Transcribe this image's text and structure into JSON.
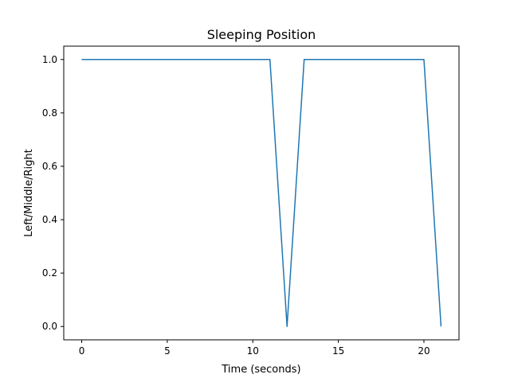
{
  "chart_data": {
    "type": "line",
    "title": "Sleeping Position",
    "xlabel": "Time (seconds)",
    "ylabel": "Left/Middle/Right",
    "xlim": [
      -1.05,
      22.05
    ],
    "ylim": [
      -0.05,
      1.05
    ],
    "x_ticks": [
      0,
      5,
      10,
      15,
      20
    ],
    "x_tick_labels": [
      "0",
      "5",
      "10",
      "15",
      "20"
    ],
    "y_ticks": [
      0.0,
      0.2,
      0.4,
      0.6,
      0.8,
      1.0
    ],
    "y_tick_labels": [
      "0.0",
      "0.2",
      "0.4",
      "0.6",
      "0.8",
      "1.0"
    ],
    "grid": false,
    "series": [
      {
        "color": "#1f77b4",
        "x": [
          0,
          1,
          2,
          3,
          4,
          5,
          6,
          7,
          8,
          9,
          10,
          11,
          12,
          13,
          14,
          15,
          16,
          17,
          18,
          19,
          20,
          21
        ],
        "y": [
          1,
          1,
          1,
          1,
          1,
          1,
          1,
          1,
          1,
          1,
          1,
          1,
          0,
          1,
          1,
          1,
          1,
          1,
          1,
          1,
          1,
          0
        ]
      }
    ]
  }
}
